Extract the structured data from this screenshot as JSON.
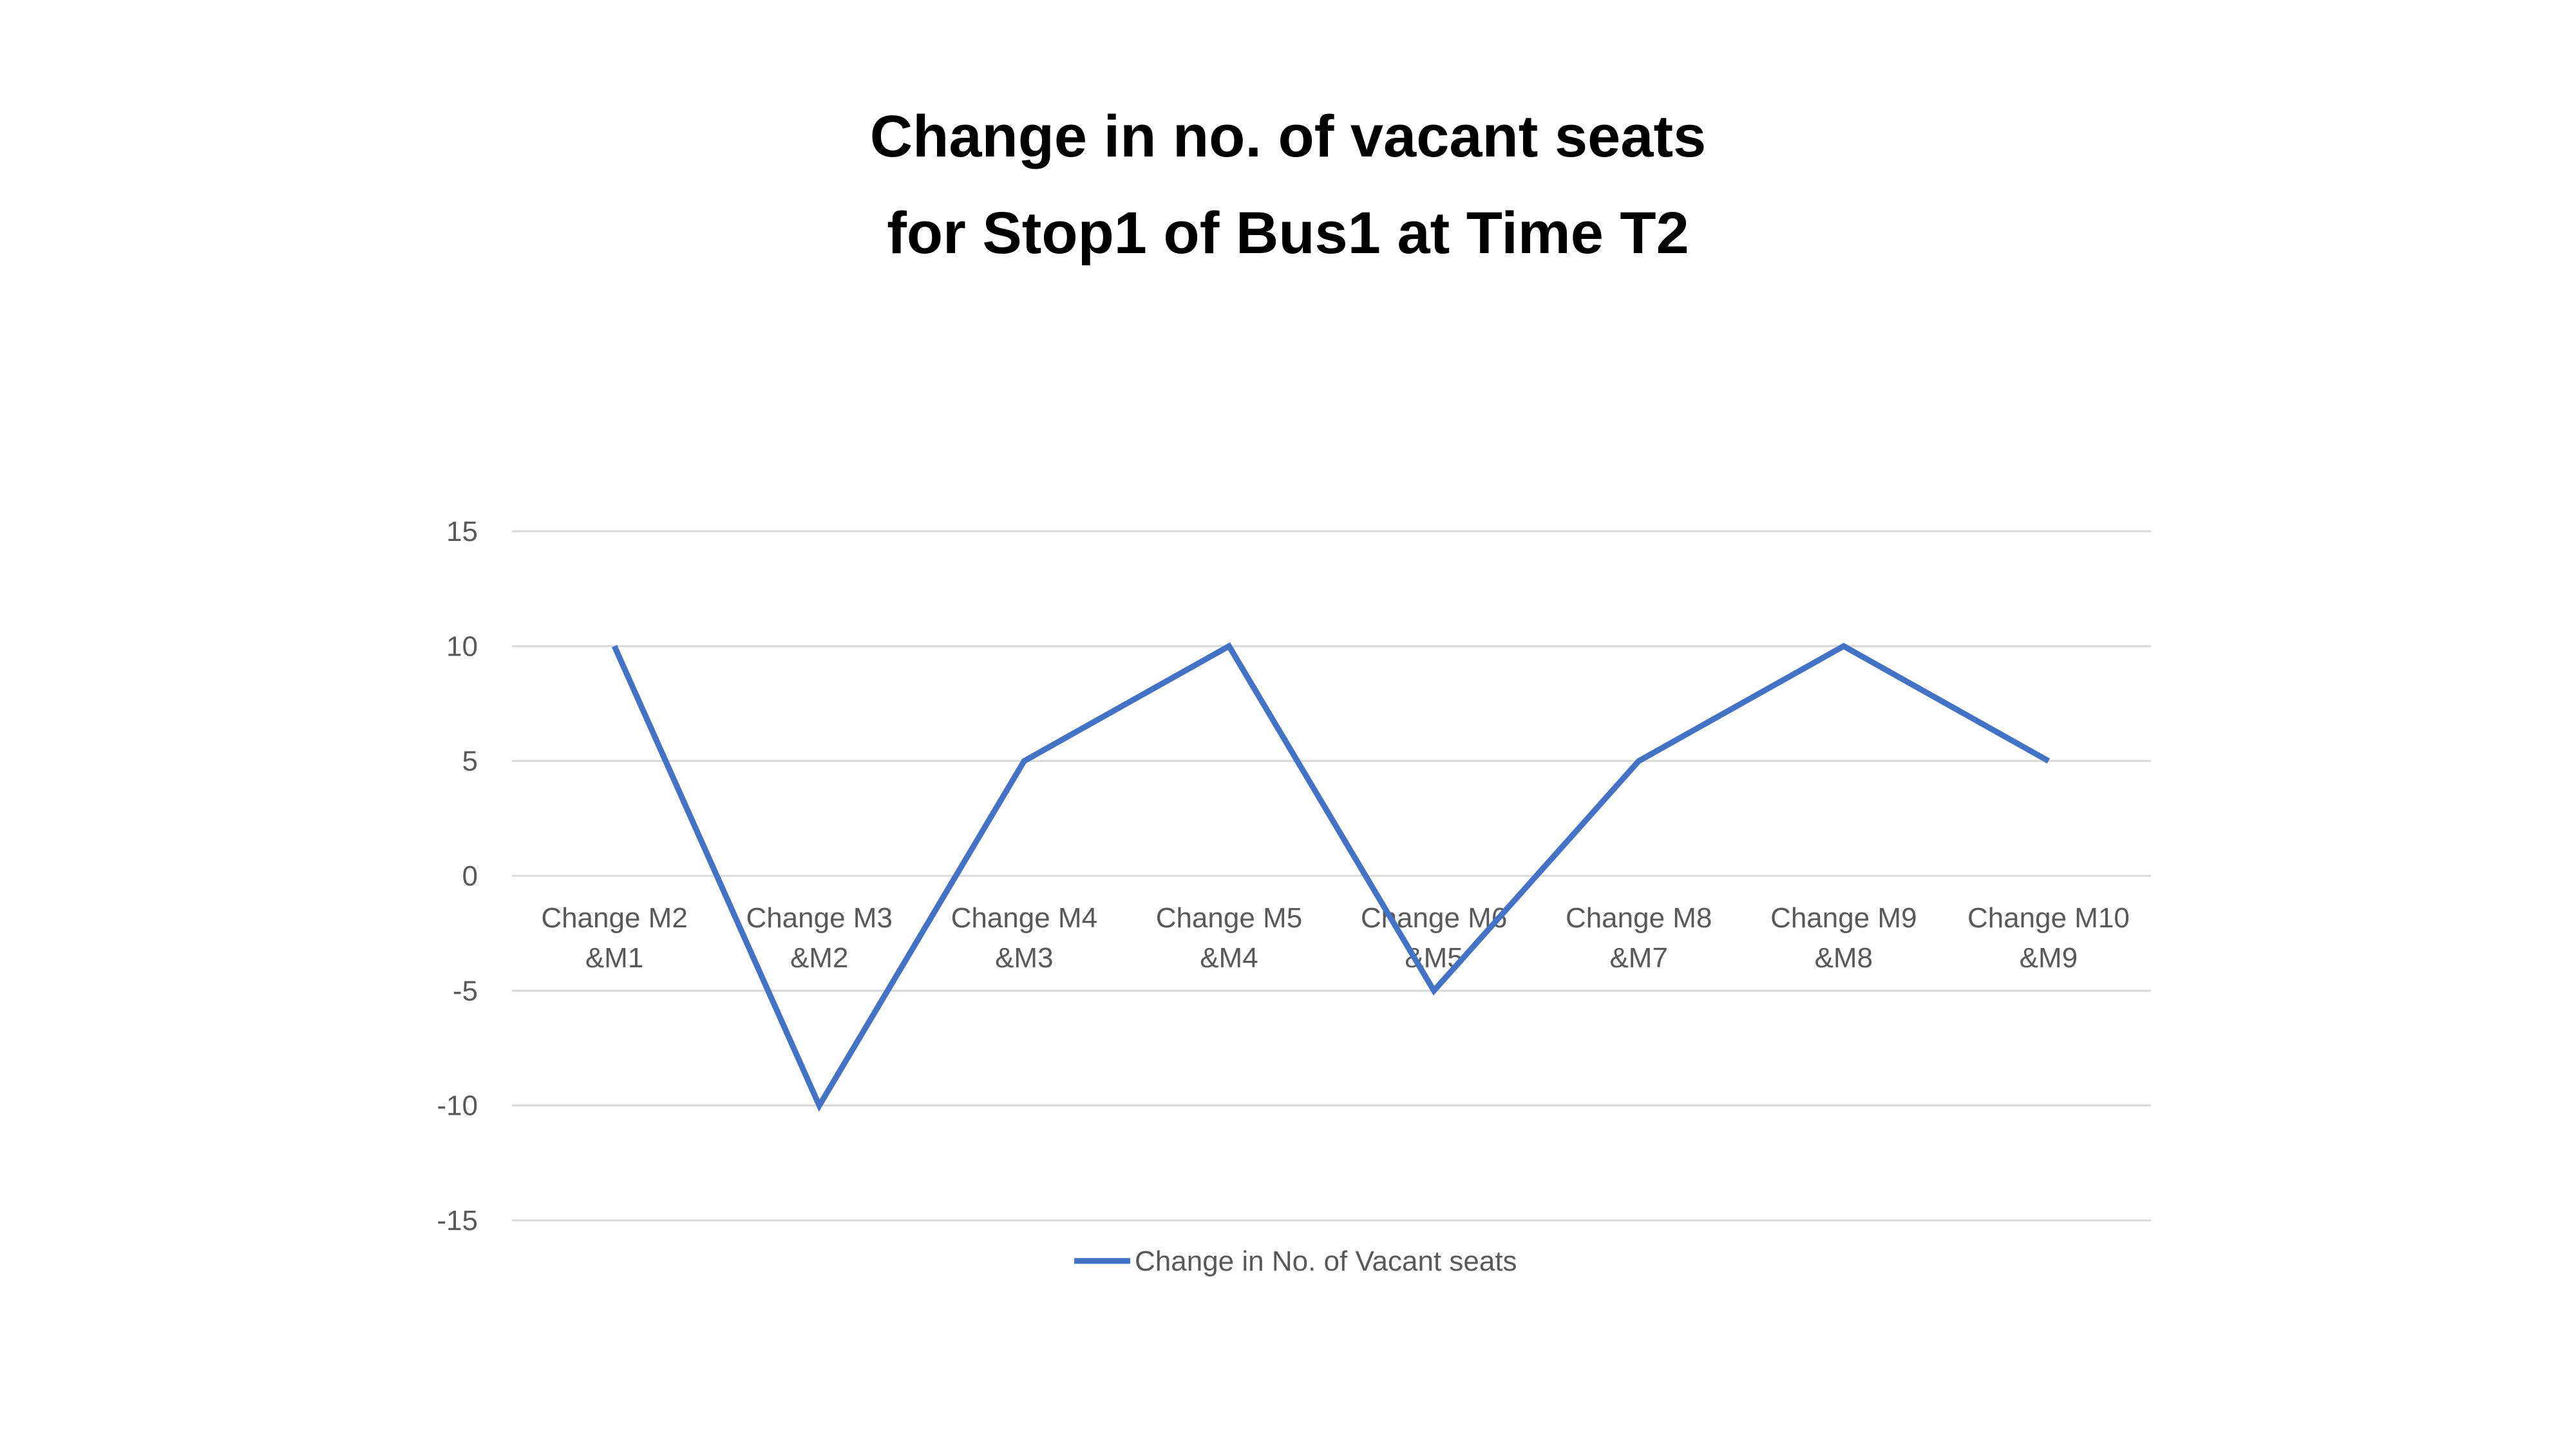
{
  "chart_data": {
    "type": "line",
    "title_lines": [
      "Change in no. of vacant seats",
      "for Stop1 of Bus1 at Time T2"
    ],
    "categories": [
      [
        "Change M2",
        "&M1"
      ],
      [
        "Change M3",
        "&M2"
      ],
      [
        "Change M4",
        "&M3"
      ],
      [
        "Change M5",
        "&M4"
      ],
      [
        "Change M6",
        "&M5"
      ],
      [
        "Change M8",
        "&M7"
      ],
      [
        "Change M9",
        "&M8"
      ],
      [
        "Change M10",
        "&M9"
      ]
    ],
    "series": [
      {
        "name": "Change in No. of Vacant seats",
        "values": [
          10,
          -10,
          5,
          10,
          -5,
          5,
          10,
          5
        ],
        "color": "#4472C4"
      }
    ],
    "ylim": [
      -15,
      15
    ],
    "yticks": [
      "15",
      "10",
      "5",
      "0",
      "-5",
      "-10",
      "-15"
    ],
    "grid": true,
    "legend_position": "bottom"
  }
}
